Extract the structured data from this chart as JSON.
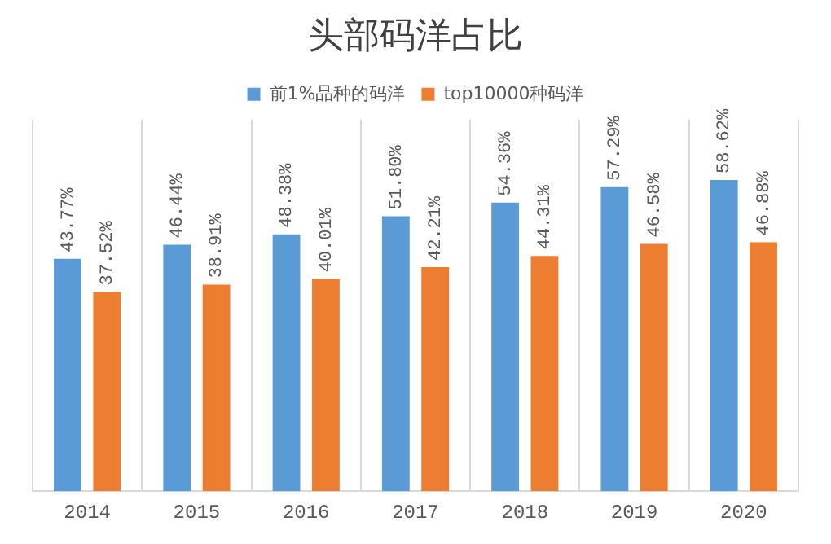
{
  "chart_data": {
    "type": "bar",
    "title": "头部码洋占比",
    "categories": [
      "2014",
      "2015",
      "2016",
      "2017",
      "2018",
      "2019",
      "2020"
    ],
    "series": [
      {
        "name": "前1%品种的码洋",
        "color": "#5b9bd5",
        "values": [
          43.77,
          46.44,
          48.38,
          51.8,
          54.36,
          57.29,
          58.62
        ],
        "value_labels": [
          "43.77%",
          "46.44%",
          "48.38%",
          "51.80%",
          "54.36%",
          "57.29%",
          "58.62%"
        ]
      },
      {
        "name": "top10000种码洋",
        "color": "#ed7d31",
        "values": [
          37.52,
          38.91,
          40.01,
          42.21,
          44.31,
          46.58,
          46.88
        ],
        "value_labels": [
          "37.52%",
          "38.91%",
          "40.01%",
          "42.21%",
          "44.31%",
          "46.58%",
          "46.88%"
        ]
      }
    ],
    "grid": "x",
    "legend": "top",
    "tick_labels": "x"
  }
}
